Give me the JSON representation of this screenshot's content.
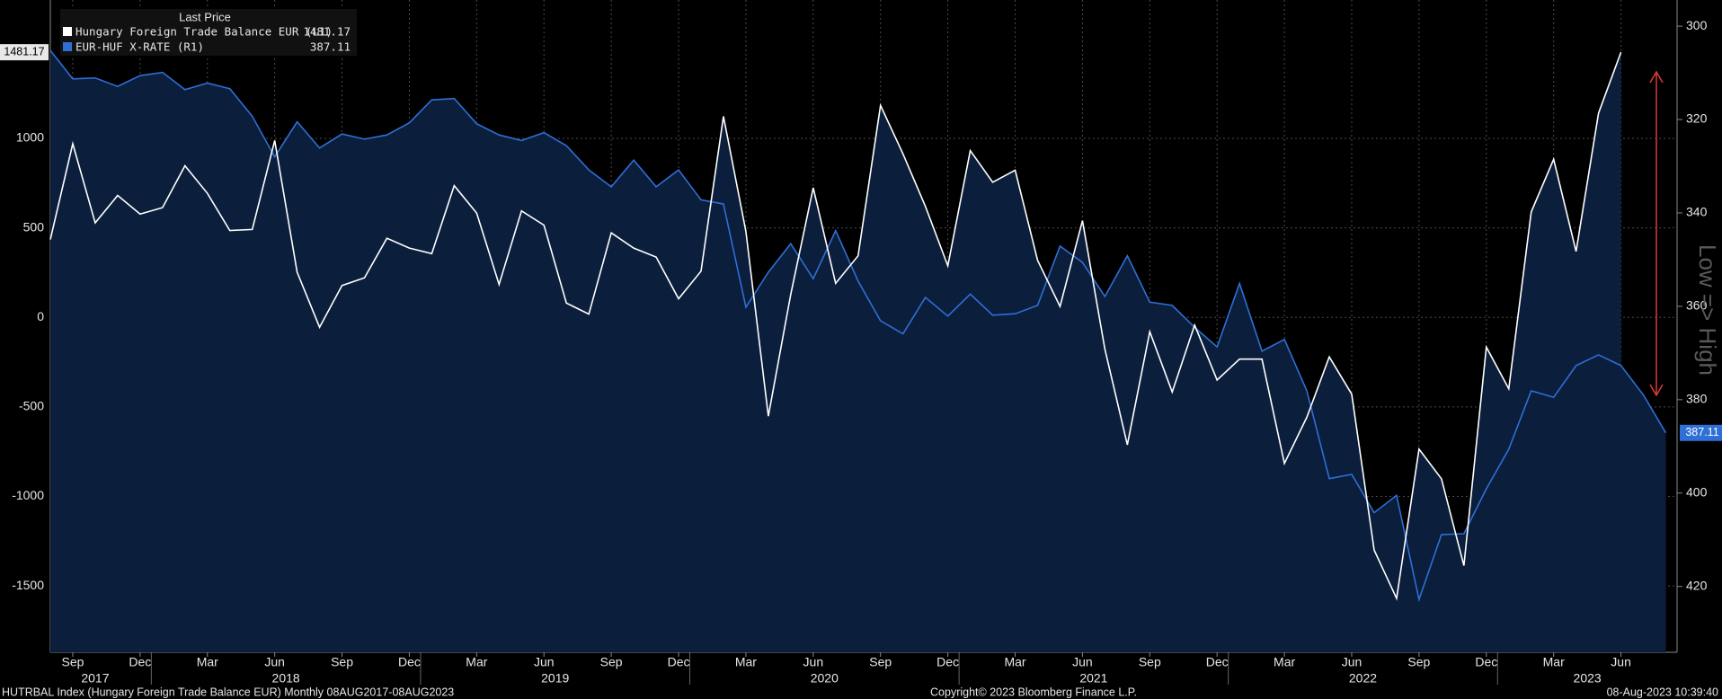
{
  "chart_data": {
    "type": "line",
    "legend_title": "Last Price",
    "y2_label": "Low => High",
    "footer_left": "HUTRBAL Index (Hungary Foreign Trade Balance EUR)  Monthly 08AUG2017-08AUG2023",
    "footer_center": "Copyright© 2023 Bloomberg Finance L.P.",
    "footer_right": "08-Aug-2023 10:39:40",
    "x": [
      "2017-08",
      "2017-09",
      "2017-10",
      "2017-11",
      "2017-12",
      "2018-01",
      "2018-02",
      "2018-03",
      "2018-04",
      "2018-05",
      "2018-06",
      "2018-07",
      "2018-08",
      "2018-09",
      "2018-10",
      "2018-11",
      "2018-12",
      "2019-01",
      "2019-02",
      "2019-03",
      "2019-04",
      "2019-05",
      "2019-06",
      "2019-07",
      "2019-08",
      "2019-09",
      "2019-10",
      "2019-11",
      "2019-12",
      "2020-01",
      "2020-02",
      "2020-03",
      "2020-04",
      "2020-05",
      "2020-06",
      "2020-07",
      "2020-08",
      "2020-09",
      "2020-10",
      "2020-11",
      "2020-12",
      "2021-01",
      "2021-02",
      "2021-03",
      "2021-04",
      "2021-05",
      "2021-06",
      "2021-07",
      "2021-08",
      "2021-09",
      "2021-10",
      "2021-11",
      "2021-12",
      "2022-01",
      "2022-02",
      "2022-03",
      "2022-04",
      "2022-05",
      "2022-06",
      "2022-07",
      "2022-08",
      "2022-09",
      "2022-10",
      "2022-11",
      "2022-12",
      "2023-01",
      "2023-02",
      "2023-03",
      "2023-04",
      "2023-05",
      "2023-06",
      "2023-07",
      "2023-08"
    ],
    "series": [
      {
        "name": "Hungary Foreign Trade Balance EUR  (L1)",
        "color": "#ffffff",
        "axis": "y",
        "values": [
          435,
          970,
          528,
          681,
          577,
          613,
          847,
          693,
          485,
          491,
          988,
          252,
          -55,
          178,
          221,
          442,
          387,
          356,
          736,
          583,
          184,
          595,
          515,
          80,
          18,
          472,
          387,
          337,
          104,
          258,
          1123,
          480,
          -552,
          129,
          724,
          190,
          344,
          1184,
          914,
          620,
          288,
          932,
          755,
          822,
          319,
          61,
          540,
          -178,
          -712,
          -80,
          -417,
          -43,
          -350,
          -233,
          -233,
          -816,
          -558,
          -221,
          -429,
          -1300,
          -1570,
          -736,
          -902,
          -1387,
          -166,
          -399,
          589,
          883,
          368,
          1141,
          1481.17,
          null,
          null
        ]
      },
      {
        "name": "EUR-HUF X-RATE  (R1)",
        "color": "#2f6fd6",
        "axis": "y2",
        "values": [
          305.2,
          311.3,
          311.1,
          312.9,
          310.6,
          309.9,
          313.6,
          312.2,
          313.4,
          319.3,
          328.0,
          320.5,
          326.1,
          323.1,
          324.2,
          323.3,
          320.7,
          315.8,
          315.5,
          320.9,
          323.3,
          324.5,
          322.8,
          325.6,
          330.8,
          334.4,
          328.7,
          334.4,
          330.8,
          337.2,
          338.1,
          360.2,
          352.7,
          346.6,
          354.1,
          343.8,
          354.6,
          363.1,
          365.9,
          358.1,
          362.1,
          357.4,
          361.9,
          361.6,
          359.8,
          347.1,
          350.6,
          357.9,
          349.2,
          359.1,
          359.8,
          364.5,
          368.7,
          355.1,
          369.6,
          367.1,
          378.1,
          396.9,
          396.0,
          404.2,
          400.5,
          422.8,
          408.9,
          408.7,
          399.1,
          390.6,
          378.1,
          379.5,
          372.7,
          370.4,
          372.7,
          379,
          387.11
        ]
      }
    ],
    "ylim": [
      -1871,
      1773
    ],
    "yticks": [
      -1500,
      -1000,
      -500,
      0,
      500,
      1000
    ],
    "y2lim": [
      294.4,
      434.1
    ],
    "y2_inverted": true,
    "y2ticks": [
      300,
      320,
      340,
      360,
      380,
      400,
      420
    ],
    "xticks": [
      {
        "value": "2017-09",
        "label": "Sep"
      },
      {
        "value": "2017-12",
        "label": "Dec"
      },
      {
        "value": "2018-03",
        "label": "Mar"
      },
      {
        "value": "2018-06",
        "label": "Jun"
      },
      {
        "value": "2018-09",
        "label": "Sep"
      },
      {
        "value": "2018-12",
        "label": "Dec"
      },
      {
        "value": "2019-03",
        "label": "Mar"
      },
      {
        "value": "2019-06",
        "label": "Jun"
      },
      {
        "value": "2019-09",
        "label": "Sep"
      },
      {
        "value": "2019-12",
        "label": "Dec"
      },
      {
        "value": "2020-03",
        "label": "Mar"
      },
      {
        "value": "2020-06",
        "label": "Jun"
      },
      {
        "value": "2020-09",
        "label": "Sep"
      },
      {
        "value": "2020-12",
        "label": "Dec"
      },
      {
        "value": "2021-03",
        "label": "Mar"
      },
      {
        "value": "2021-06",
        "label": "Jun"
      },
      {
        "value": "2021-09",
        "label": "Sep"
      },
      {
        "value": "2021-12",
        "label": "Dec"
      },
      {
        "value": "2022-03",
        "label": "Mar"
      },
      {
        "value": "2022-06",
        "label": "Jun"
      },
      {
        "value": "2022-09",
        "label": "Sep"
      },
      {
        "value": "2022-12",
        "label": "Dec"
      },
      {
        "value": "2023-03",
        "label": "Mar"
      },
      {
        "value": "2023-06",
        "label": "Jun"
      }
    ],
    "year_labels": [
      "2017",
      "2018",
      "2019",
      "2020",
      "2021",
      "2022",
      "2023"
    ],
    "area_color": "#0b1e3b",
    "grid": true
  }
}
